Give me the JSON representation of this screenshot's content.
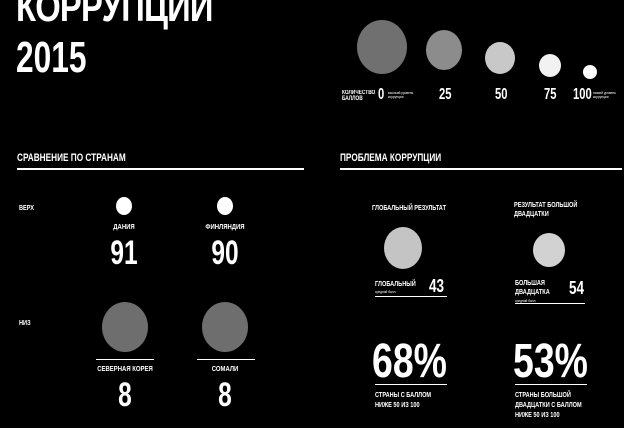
{
  "title": {
    "line1": "КОРРУПЦИИ",
    "line2": "2015"
  },
  "legend": {
    "label": "КОЛИЧЕСТВО БАЛЛОВ",
    "low_note": "высокий уровень коррупции",
    "high_note": "низкий уровень коррупции",
    "ticks": [
      "0",
      "25",
      "50",
      "75",
      "100"
    ]
  },
  "comparison": {
    "title": "СРАВНЕНИЕ ПО СТРАНАМ",
    "top_label": "ВЕРХ",
    "bottom_label": "НИЗ",
    "top": [
      {
        "country": "ДАНИЯ",
        "score": "91"
      },
      {
        "country": "ФИНЛЯНДИЯ",
        "score": "90"
      }
    ],
    "bottom": [
      {
        "country": "СЕВЕРНАЯ КОРЕЯ",
        "score": "8"
      },
      {
        "country": "СОМАЛИ",
        "score": "8"
      }
    ]
  },
  "problem": {
    "title": "ПРОБЛЕМА КОРРУПЦИИ",
    "global": {
      "header": "ГЛОБАЛЬНЫЙ РЕЗУЛЬТАТ",
      "label": "ГЛОБАЛЬНЫЙ",
      "sub": "средний балл",
      "score": "43",
      "percent": "68%",
      "caption_line1": "СТРАНЫ С БАЛЛОМ",
      "caption_line2": "НИЖЕ 50 ИЗ 100"
    },
    "g20": {
      "header_line1": "РЕЗУЛЬТАТ БОЛЬШОЙ",
      "header_line2": "ДВАДЦАТКИ",
      "label_line1": "БОЛЬШАЯ",
      "label_line2": "ДВАДЦАТКА",
      "sub": "средний балл",
      "score": "54",
      "percent": "53%",
      "caption_line1": "СТРАНЫ БОЛЬШОЙ",
      "caption_line2": "ДВАДЦАТКИ С БАЛЛОМ",
      "caption_line3": "НИЖЕ 50 ИЗ 100"
    }
  },
  "colors": {
    "background": "#000000",
    "score_0": "#707070",
    "score_25": "#8c8c8c",
    "score_50": "#c8c8c8",
    "score_75": "#f2f2f2",
    "score_100": "#ffffff",
    "global_circle": "#c4c4c4",
    "g20_circle": "#d2d2d2"
  }
}
